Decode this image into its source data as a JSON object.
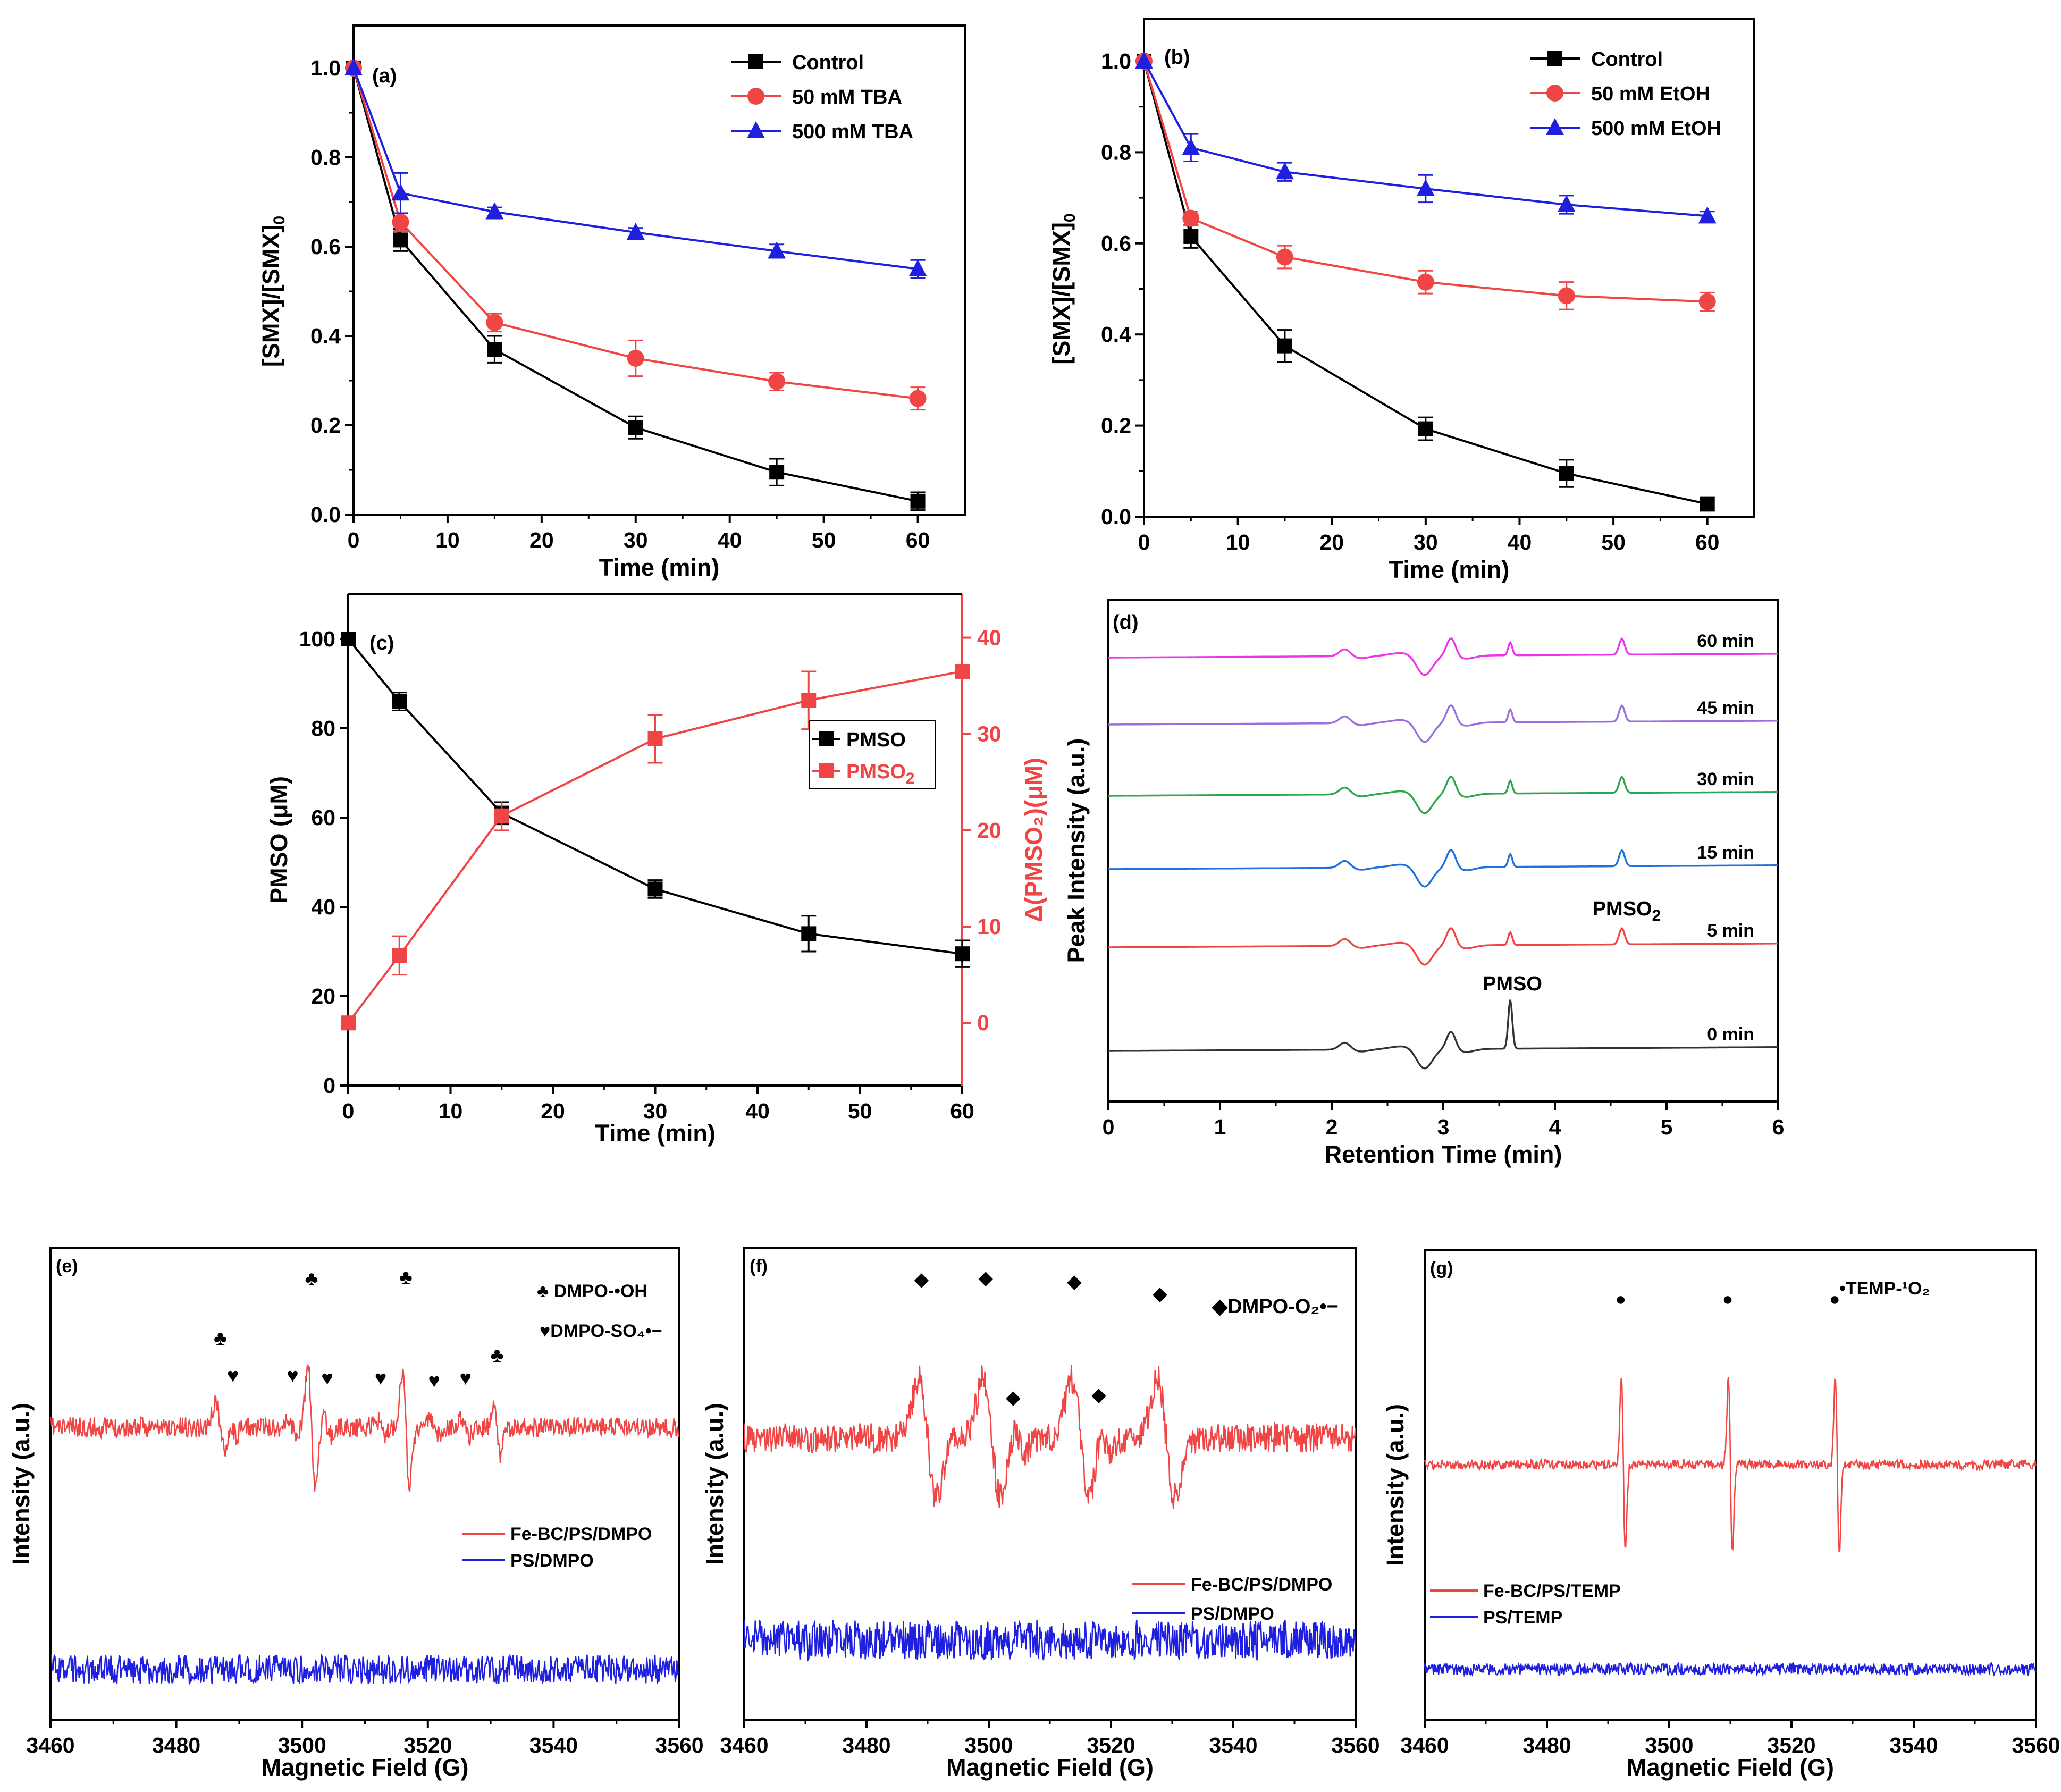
{
  "colors": {
    "black": "#000000",
    "red": "#f04545",
    "blue": "#1f1fe0",
    "magenta": "#ee33ee",
    "purple": "#9b6ee0",
    "green": "#2ea64a",
    "lightblue": "#1e6fe0",
    "gray": "#333333"
  },
  "chart_data": [
    {
      "panel": "(a)",
      "type": "line",
      "xlabel": "Time (min)",
      "ylabel": "[SMX]/[SMX]",
      "ylabel_sub": "0",
      "xlim": [
        0,
        65
      ],
      "ylim": [
        0,
        1.0
      ],
      "xticks": [
        0,
        10,
        20,
        30,
        40,
        50,
        60
      ],
      "yticks": [
        "0.0",
        "0.2",
        "0.4",
        "0.6",
        "0.8",
        "1.0"
      ],
      "legend_position": "top-right",
      "x": [
        0,
        5,
        15,
        30,
        45,
        60
      ],
      "series": [
        {
          "name": "Control",
          "marker": "square",
          "color": "#000000",
          "values": [
            1.0,
            0.615,
            0.37,
            0.195,
            0.095,
            0.03
          ],
          "errors": [
            0,
            0.025,
            0.03,
            0.025,
            0.03,
            0.02
          ]
        },
        {
          "name": "50 mM TBA",
          "marker": "circle",
          "color": "#f04545",
          "values": [
            1.0,
            0.655,
            0.43,
            0.35,
            0.298,
            0.26
          ],
          "errors": [
            0,
            0.02,
            0.02,
            0.04,
            0.02,
            0.025
          ]
        },
        {
          "name": "500 mM TBA",
          "marker": "triangle",
          "color": "#1f1fe0",
          "values": [
            1.0,
            0.72,
            0.678,
            0.632,
            0.59,
            0.55
          ],
          "errors": [
            0,
            0.045,
            0.01,
            0.01,
            0.015,
            0.02
          ]
        }
      ]
    },
    {
      "panel": "(b)",
      "type": "line",
      "xlabel": "Time (min)",
      "ylabel": "[SMX]/[SMX]",
      "ylabel_sub": "0",
      "xlim": [
        0,
        65
      ],
      "ylim": [
        0,
        1.0
      ],
      "xticks": [
        0,
        10,
        20,
        30,
        40,
        50,
        60
      ],
      "yticks": [
        "0.0",
        "0.2",
        "0.4",
        "0.6",
        "0.8",
        "1.0"
      ],
      "legend_position": "top-right",
      "x": [
        0,
        5,
        15,
        30,
        45,
        60
      ],
      "series": [
        {
          "name": "Control",
          "marker": "square",
          "color": "#000000",
          "values": [
            1.0,
            0.615,
            0.375,
            0.193,
            0.095,
            0.028
          ],
          "errors": [
            0,
            0.025,
            0.035,
            0.025,
            0.03,
            0.015
          ]
        },
        {
          "name": "50 mM EtOH",
          "marker": "circle",
          "color": "#f04545",
          "values": [
            1.0,
            0.655,
            0.57,
            0.515,
            0.485,
            0.472
          ],
          "errors": [
            0,
            0.015,
            0.025,
            0.025,
            0.03,
            0.02
          ]
        },
        {
          "name": "500 mM EtOH",
          "marker": "triangle",
          "color": "#1f1fe0",
          "values": [
            1.0,
            0.81,
            0.757,
            0.72,
            0.685,
            0.66
          ],
          "errors": [
            0,
            0.03,
            0.02,
            0.03,
            0.02,
            0.01
          ]
        }
      ]
    },
    {
      "panel": "(c)",
      "type": "line",
      "xlabel": "Time (min)",
      "ylabel": "PMSO (μM)",
      "y2label": "Δ(PMSO₂)(μM)",
      "xlim": [
        0,
        60
      ],
      "ylim": [
        0,
        110
      ],
      "y2lim": [
        -6.5,
        44.5
      ],
      "xticks": [
        0,
        10,
        20,
        30,
        40,
        50,
        60
      ],
      "yticks": [
        "0",
        "20",
        "40",
        "60",
        "80",
        "100"
      ],
      "y2ticks": [
        "0",
        "10",
        "20",
        "30",
        "40"
      ],
      "legend_position": "center-right",
      "x": [
        0,
        5,
        15,
        30,
        45,
        60
      ],
      "series": [
        {
          "name": "PMSO",
          "axis": "left",
          "marker": "square",
          "color": "#000000",
          "values": [
            100,
            86,
            61,
            44,
            34,
            29.5
          ],
          "errors": [
            0,
            2,
            2.5,
            2,
            4,
            3
          ]
        },
        {
          "name": "PMSO",
          "name_sub": "2",
          "axis": "right",
          "marker": "square",
          "color": "#f04545",
          "values": [
            0,
            7,
            21.5,
            29.5,
            33.5,
            36.5
          ],
          "errors": [
            0,
            2,
            1.5,
            2.5,
            3,
            0
          ]
        }
      ]
    },
    {
      "panel": "(d)",
      "type": "line",
      "xlabel": "Retention Time (min)",
      "ylabel": "Peak Intensity (a.u.)",
      "xlim": [
        0,
        6
      ],
      "xticks": [
        0,
        1,
        2,
        3,
        4,
        5,
        6
      ],
      "traces": [
        {
          "name": "0 min",
          "color": "#333333",
          "pmso_peak": true,
          "pmso2_peak": false
        },
        {
          "name": "5 min",
          "color": "#f04545",
          "pmso_peak": true,
          "pmso2_peak": true
        },
        {
          "name": "15 min",
          "color": "#1e6fe0",
          "pmso_peak": true,
          "pmso2_peak": true
        },
        {
          "name": "30 min",
          "color": "#2ea64a",
          "pmso_peak": true,
          "pmso2_peak": true
        },
        {
          "name": "45 min",
          "color": "#9b6ee0",
          "pmso_peak": true,
          "pmso2_peak": true
        },
        {
          "name": "60 min",
          "color": "#ee33ee",
          "pmso_peak": true,
          "pmso2_peak": true
        }
      ],
      "annotations": [
        {
          "text": "PMSO",
          "x": 3.6
        },
        {
          "text": "PMSO",
          "sub": "2",
          "x": 4.6
        }
      ]
    },
    {
      "panel": "(e)",
      "type": "line",
      "xlabel": "Magnetic Field (G)",
      "ylabel": "Intensity (a.u.)",
      "xlim": [
        3460,
        3560
      ],
      "xticks": [
        3460,
        3480,
        3500,
        3520,
        3540,
        3560
      ],
      "series": [
        {
          "name": "Fe-BC/PS/DMPO",
          "color": "#f04545"
        },
        {
          "name": "PS/DMPO",
          "color": "#1f1fe0"
        }
      ],
      "legend_markers": [
        {
          "symbol": "♣",
          "text": "DMPO-•OH"
        },
        {
          "symbol": "♥",
          "text": "DMPO-SO₄•−"
        }
      ],
      "peaks_club": [
        3487,
        3501.5,
        3516.5,
        3531
      ],
      "peaks_heart": [
        3489,
        3498.5,
        3504,
        3512.5,
        3521,
        3526
      ]
    },
    {
      "panel": "(f)",
      "type": "line",
      "xlabel": "Magnetic Field (G)",
      "ylabel": "Intensity (a.u.)",
      "xlim": [
        3460,
        3560
      ],
      "xticks": [
        3460,
        3480,
        3500,
        3520,
        3540,
        3560
      ],
      "series": [
        {
          "name": "Fe-BC/PS/DMPO",
          "color": "#f04545"
        },
        {
          "name": "PS/DMPO",
          "color": "#1f1fe0"
        }
      ],
      "legend_markers": [
        {
          "symbol": "◆",
          "text": "DMPO-O₂•−"
        }
      ],
      "peaks_major": [
        3489,
        3499.5,
        3514,
        3528
      ],
      "peaks_minor": [
        3504,
        3518
      ]
    },
    {
      "panel": "(g)",
      "type": "line",
      "xlabel": "Magnetic Field (G)",
      "ylabel": "Intensity (a.u.)",
      "xlim": [
        3460,
        3560
      ],
      "xticks": [
        3460,
        3480,
        3500,
        3520,
        3540,
        3560
      ],
      "series": [
        {
          "name": "Fe-BC/PS/TEMP",
          "color": "#f04545"
        },
        {
          "name": "PS/TEMP",
          "color": "#1f1fe0"
        }
      ],
      "legend_markers": [
        {
          "symbol": "•",
          "text": "TEMP-¹O₂"
        }
      ],
      "peaks": [
        3492.5,
        3510,
        3527.5
      ]
    }
  ]
}
